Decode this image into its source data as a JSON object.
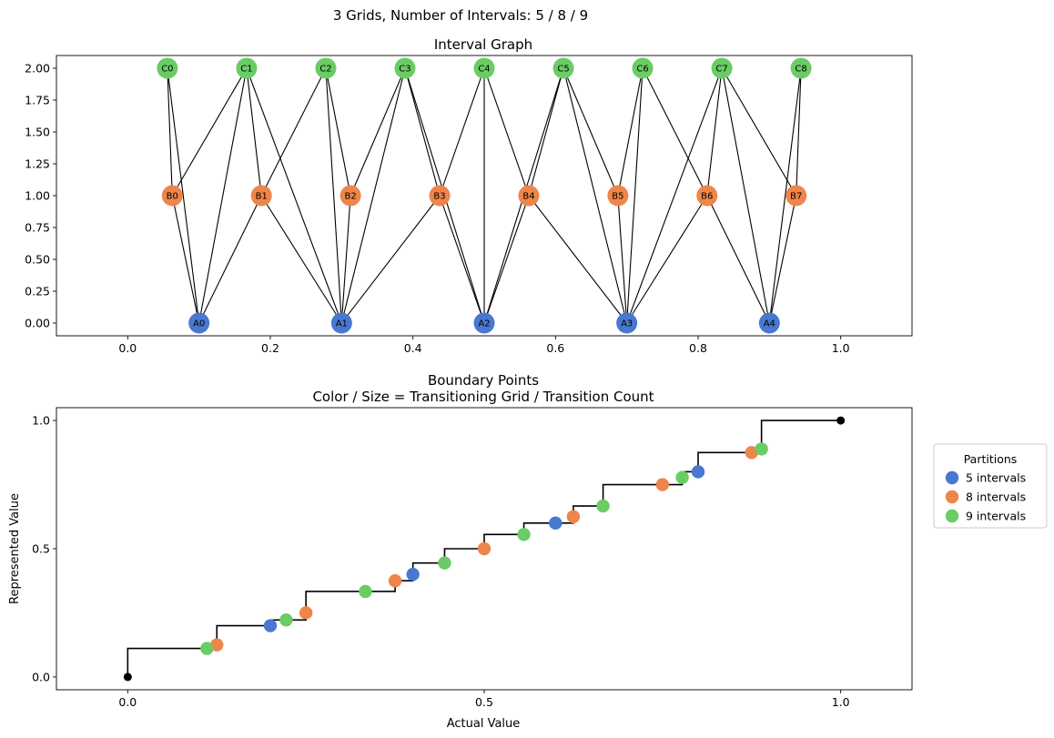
{
  "suptitle": "3 Grids, Number of Intervals: 5 / 8 / 9",
  "chart_data": [
    {
      "type": "network",
      "title": "Interval Graph",
      "xlim": [
        -0.1,
        1.1
      ],
      "ylim": [
        -0.1,
        2.1
      ],
      "xticks": [
        "0.0",
        "0.2",
        "0.4",
        "0.6",
        "0.8",
        "1.0"
      ],
      "xtick_values": [
        0.0,
        0.2,
        0.4,
        0.6,
        0.8,
        1.0
      ],
      "yticks": [
        "0.00",
        "0.25",
        "0.50",
        "0.75",
        "1.00",
        "1.25",
        "1.50",
        "1.75",
        "2.00"
      ],
      "ytick_values": [
        0,
        0.25,
        0.5,
        0.75,
        1.0,
        1.25,
        1.5,
        1.75,
        2.0
      ],
      "nodes": [
        {
          "id": "A0",
          "x": 0.1,
          "y": 0,
          "color": "#4878d0"
        },
        {
          "id": "A1",
          "x": 0.3,
          "y": 0,
          "color": "#4878d0"
        },
        {
          "id": "A2",
          "x": 0.5,
          "y": 0,
          "color": "#4878d0"
        },
        {
          "id": "A3",
          "x": 0.7,
          "y": 0,
          "color": "#4878d0"
        },
        {
          "id": "A4",
          "x": 0.9,
          "y": 0,
          "color": "#4878d0"
        },
        {
          "id": "B0",
          "x": 0.0625,
          "y": 1,
          "color": "#ee854a"
        },
        {
          "id": "B1",
          "x": 0.1875,
          "y": 1,
          "color": "#ee854a"
        },
        {
          "id": "B2",
          "x": 0.3125,
          "y": 1,
          "color": "#ee854a"
        },
        {
          "id": "B3",
          "x": 0.4375,
          "y": 1,
          "color": "#ee854a"
        },
        {
          "id": "B4",
          "x": 0.5625,
          "y": 1,
          "color": "#ee854a"
        },
        {
          "id": "B5",
          "x": 0.6875,
          "y": 1,
          "color": "#ee854a"
        },
        {
          "id": "B6",
          "x": 0.8125,
          "y": 1,
          "color": "#ee854a"
        },
        {
          "id": "B7",
          "x": 0.9375,
          "y": 1,
          "color": "#ee854a"
        },
        {
          "id": "C0",
          "x": 0.0556,
          "y": 2,
          "color": "#6acc64"
        },
        {
          "id": "C1",
          "x": 0.1667,
          "y": 2,
          "color": "#6acc64"
        },
        {
          "id": "C2",
          "x": 0.2778,
          "y": 2,
          "color": "#6acc64"
        },
        {
          "id": "C3",
          "x": 0.3889,
          "y": 2,
          "color": "#6acc64"
        },
        {
          "id": "C4",
          "x": 0.5,
          "y": 2,
          "color": "#6acc64"
        },
        {
          "id": "C5",
          "x": 0.6111,
          "y": 2,
          "color": "#6acc64"
        },
        {
          "id": "C6",
          "x": 0.7222,
          "y": 2,
          "color": "#6acc64"
        },
        {
          "id": "C7",
          "x": 0.8333,
          "y": 2,
          "color": "#6acc64"
        },
        {
          "id": "C8",
          "x": 0.9444,
          "y": 2,
          "color": "#6acc64"
        }
      ],
      "edges": [
        [
          "A0",
          "B0"
        ],
        [
          "A0",
          "B1"
        ],
        [
          "A0",
          "C0"
        ],
        [
          "A0",
          "C1"
        ],
        [
          "A1",
          "B1"
        ],
        [
          "A1",
          "B2"
        ],
        [
          "A1",
          "B3"
        ],
        [
          "A1",
          "C1"
        ],
        [
          "A1",
          "C2"
        ],
        [
          "A1",
          "C3"
        ],
        [
          "A2",
          "B3"
        ],
        [
          "A2",
          "B4"
        ],
        [
          "A2",
          "C3"
        ],
        [
          "A2",
          "C4"
        ],
        [
          "A2",
          "C5"
        ],
        [
          "A3",
          "B4"
        ],
        [
          "A3",
          "B5"
        ],
        [
          "A3",
          "B6"
        ],
        [
          "A3",
          "C5"
        ],
        [
          "A3",
          "C6"
        ],
        [
          "A3",
          "C7"
        ],
        [
          "A4",
          "B6"
        ],
        [
          "A4",
          "B7"
        ],
        [
          "A4",
          "C7"
        ],
        [
          "A4",
          "C8"
        ],
        [
          "B0",
          "C0"
        ],
        [
          "B0",
          "C1"
        ],
        [
          "B1",
          "C1"
        ],
        [
          "B1",
          "C2"
        ],
        [
          "B2",
          "C2"
        ],
        [
          "B2",
          "C3"
        ],
        [
          "B3",
          "C3"
        ],
        [
          "B3",
          "C4"
        ],
        [
          "B4",
          "C4"
        ],
        [
          "B4",
          "C5"
        ],
        [
          "B5",
          "C5"
        ],
        [
          "B5",
          "C6"
        ],
        [
          "B6",
          "C6"
        ],
        [
          "B6",
          "C7"
        ],
        [
          "B7",
          "C7"
        ],
        [
          "B7",
          "C8"
        ]
      ]
    },
    {
      "type": "scatter",
      "title": "Boundary Points\nColor / Size = Transitioning Grid / Transition Count",
      "title_lines": [
        "Boundary Points",
        "Color / Size = Transitioning Grid / Transition Count"
      ],
      "xlabel": "Actual Value",
      "ylabel": "Represented Value",
      "xlim": [
        -0.1,
        1.1
      ],
      "ylim": [
        -0.05,
        1.05
      ],
      "xticks": [
        "0.0",
        "0.5",
        "1.0"
      ],
      "xtick_values": [
        0,
        0.5,
        1.0
      ],
      "yticks": [
        "0.0",
        "0.5",
        "1.0"
      ],
      "ytick_values": [
        0,
        0.5,
        1.0
      ],
      "step_line": [
        [
          0,
          0
        ],
        [
          0,
          0.1111
        ],
        [
          0.125,
          0.1111
        ],
        [
          0.125,
          0.2
        ],
        [
          0.2,
          0.2
        ],
        [
          0.2,
          0.2222
        ],
        [
          0.25,
          0.2222
        ],
        [
          0.25,
          0.3333
        ],
        [
          0.375,
          0.3333
        ],
        [
          0.375,
          0.375
        ],
        [
          0.4,
          0.375
        ],
        [
          0.4,
          0.4444
        ],
        [
          0.4444,
          0.4444
        ],
        [
          0.4444,
          0.5
        ],
        [
          0.5,
          0.5
        ],
        [
          0.5,
          0.5556
        ],
        [
          0.5556,
          0.5556
        ],
        [
          0.5556,
          0.6
        ],
        [
          0.625,
          0.6
        ],
        [
          0.625,
          0.6667
        ],
        [
          0.6667,
          0.6667
        ],
        [
          0.6667,
          0.75
        ],
        [
          0.7778,
          0.75
        ],
        [
          0.7778,
          0.8
        ],
        [
          0.8,
          0.8
        ],
        [
          0.8,
          0.875
        ],
        [
          0.8889,
          0.875
        ],
        [
          0.8889,
          1.0
        ],
        [
          1.0,
          1.0
        ]
      ],
      "endpoints": [
        {
          "x": 0,
          "y": 0
        },
        {
          "x": 1.0,
          "y": 1.0
        }
      ],
      "series": [
        {
          "name": "5 intervals",
          "color": "#4878d0",
          "points": [
            [
              0.2,
              0.2
            ],
            [
              0.4,
              0.4
            ],
            [
              0.6,
              0.6
            ],
            [
              0.8,
              0.8
            ]
          ]
        },
        {
          "name": "8 intervals",
          "color": "#ee854a",
          "points": [
            [
              0.125,
              0.125
            ],
            [
              0.25,
              0.25
            ],
            [
              0.375,
              0.375
            ],
            [
              0.5,
              0.5
            ],
            [
              0.625,
              0.625
            ],
            [
              0.75,
              0.75
            ],
            [
              0.875,
              0.875
            ]
          ]
        },
        {
          "name": "9 intervals",
          "color": "#6acc64",
          "points": [
            [
              0.1111,
              0.1111
            ],
            [
              0.2222,
              0.2222
            ],
            [
              0.3333,
              0.3333
            ],
            [
              0.4444,
              0.4444
            ],
            [
              0.5556,
              0.5556
            ],
            [
              0.6667,
              0.6667
            ],
            [
              0.7778,
              0.7778
            ],
            [
              0.8889,
              0.8889
            ]
          ]
        }
      ],
      "legend": {
        "title": "Partitions",
        "placement": "right"
      }
    }
  ]
}
